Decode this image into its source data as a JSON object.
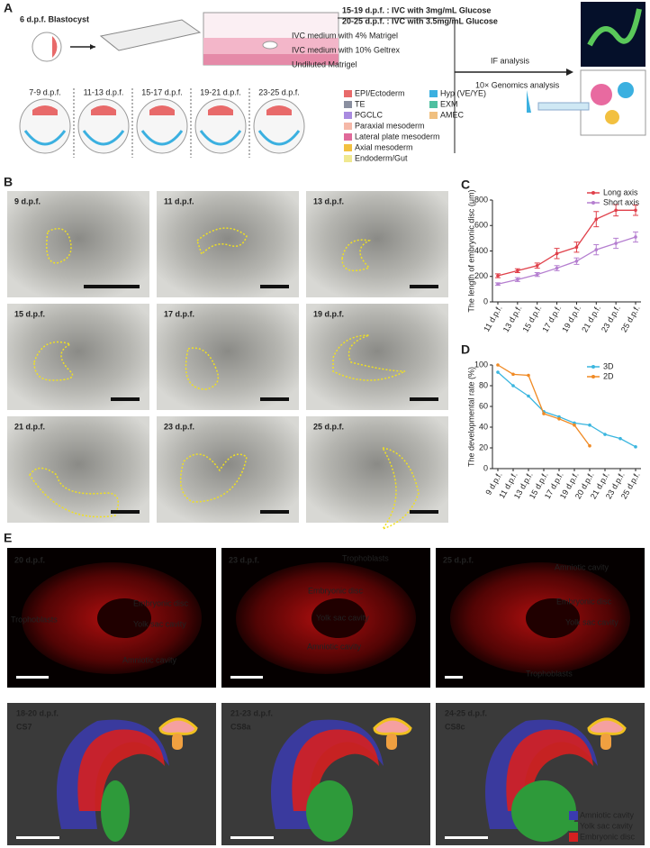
{
  "panel_a": {
    "label": "A",
    "blastocyst": "6 d.p.f. Blastocyst",
    "culture_notes": [
      "15-19 d.p.f. : IVC with 3mg/mL Glucose",
      "20-25 d.p.f. : IVC with 3.5mg/mL Glucose",
      "IVC medium with 4% Matrigel",
      "IVC medium with 10% Geltrex",
      "Undiluted Matrigel"
    ],
    "stages": [
      "7-9 d.p.f.",
      "11-13 d.p.f.",
      "15-17 d.p.f.",
      "19-21 d.p.f.",
      "23-25 d.p.f."
    ],
    "legend": [
      {
        "name": "EPI/Ectoderm",
        "color": "#e86a6a"
      },
      {
        "name": "TE",
        "color": "#8a8fa0"
      },
      {
        "name": "PGCLC",
        "color": "#a98be0"
      },
      {
        "name": "Paraxial mesoderm",
        "color": "#f5b8a8"
      },
      {
        "name": "Lateral plate mesoderm",
        "color": "#e06a9a"
      },
      {
        "name": "Axial mesoderm",
        "color": "#f2c040"
      },
      {
        "name": "Endoderm/Gut",
        "color": "#f0e890"
      },
      {
        "name": "Hyp (VE/YE)",
        "color": "#3bb0e0"
      },
      {
        "name": "EXM",
        "color": "#4fc0a0"
      },
      {
        "name": "AMEC",
        "color": "#f0c080"
      }
    ],
    "analyses": [
      "IF analysis",
      "10× Genomics analysis"
    ]
  },
  "panel_b": {
    "label": "B",
    "images": [
      "9 d.p.f.",
      "11 d.p.f.",
      "13 d.p.f.",
      "15 d.p.f.",
      "17 d.p.f.",
      "19 d.p.f.",
      "21 d.p.f.",
      "23 d.p.f.",
      "25 d.p.f."
    ]
  },
  "chart_data": [
    {
      "type": "line",
      "panel_label": "C",
      "ylabel": "The length of embryonic disc (μm)",
      "categories": [
        "11 d.p.f.",
        "13 d.p.f.",
        "15 d.p.f.",
        "17 d.p.f.",
        "19 d.p.f.",
        "21 d.p.f.",
        "23 d.p.f.",
        "25 d.p.f."
      ],
      "series": [
        {
          "name": "Long axis",
          "color": "#e0404a",
          "values": [
            205,
            245,
            285,
            380,
            430,
            650,
            720,
            720
          ],
          "errors": [
            15,
            15,
            20,
            40,
            40,
            60,
            45,
            40
          ]
        },
        {
          "name": "Short axis",
          "color": "#b57fd0",
          "values": [
            140,
            175,
            215,
            265,
            320,
            410,
            460,
            510
          ],
          "errors": [
            10,
            15,
            15,
            20,
            25,
            40,
            40,
            40
          ]
        }
      ],
      "ylim": [
        0,
        800
      ],
      "yticks": [
        0,
        200,
        400,
        600,
        800
      ],
      "legend": "top-right"
    },
    {
      "type": "line",
      "panel_label": "D",
      "ylabel": "The developmental rate (%)",
      "categories": [
        "9 d.p.f.",
        "11 d.p.f.",
        "13 d.p.f.",
        "15 d.p.f.",
        "17 d.p.f.",
        "19 d.p.f.",
        "20 d.p.f.",
        "21 d.p.f.",
        "23 d.p.f.",
        "25 d.p.f."
      ],
      "series": [
        {
          "name": "3D",
          "color": "#3bb6df",
          "values": [
            93,
            80,
            70,
            55,
            50,
            44,
            42,
            33,
            29,
            21
          ]
        },
        {
          "name": "2D",
          "color": "#f08a24",
          "values": [
            100,
            91,
            90,
            53,
            48,
            42,
            22,
            null,
            null,
            null
          ]
        }
      ],
      "ylim": [
        0,
        100
      ],
      "yticks": [
        0,
        20,
        40,
        60,
        80,
        100
      ],
      "legend": "top-right"
    }
  ],
  "panel_e": {
    "label": "E",
    "sections": [
      {
        "title": "20 d.p.f.",
        "annotations": [
          "Trophoblasts",
          "Embryonic disc",
          "Yolk sac cavity",
          "Amniotic cavity"
        ]
      },
      {
        "title": "23 d.p.f.",
        "annotations": [
          "Trophoblasts",
          "Embryonic disc",
          "Yolk sac cavity",
          "Amniotic cavity"
        ]
      },
      {
        "title": "25 d.p.f.",
        "annotations": [
          "Amniotic cavity",
          "Embryonic disc",
          "Yolk sac cavity",
          "Trophoblasts"
        ]
      }
    ],
    "models": [
      {
        "title": "18-20 d.p.f.",
        "stage": "CS7"
      },
      {
        "title": "21-23 d.p.f.",
        "stage": "CS8a"
      },
      {
        "title": "24-25 d.p.f.",
        "stage": "CS8c"
      }
    ],
    "model_legend": [
      {
        "name": "Amniotic cavity",
        "color": "#3b3bb0"
      },
      {
        "name": "Yolk sac cavity",
        "color": "#2e9a3a"
      },
      {
        "name": "Embryonic disc",
        "color": "#d62020"
      }
    ]
  }
}
